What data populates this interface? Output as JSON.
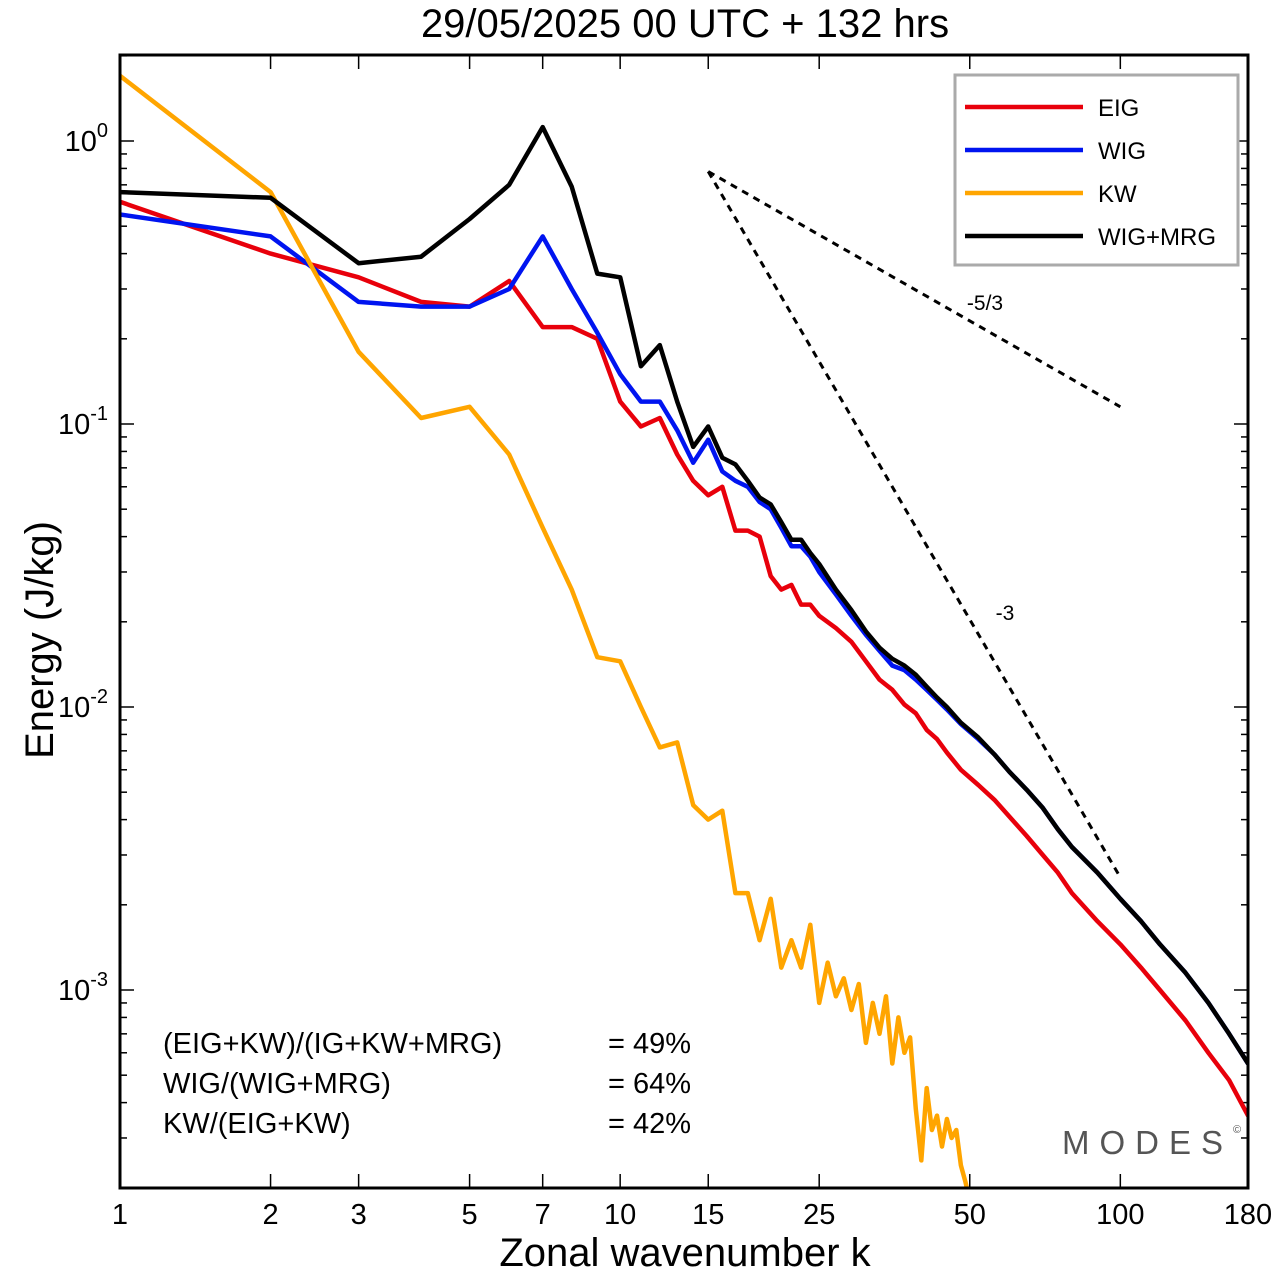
{
  "chart_data": {
    "type": "line",
    "title": "29/05/2025  00 UTC  + 132 hrs",
    "xlabel": "Zonal wavenumber k",
    "ylabel": "Energy (J/kg)",
    "xscale": "log",
    "yscale": "log",
    "xlim": [
      1,
      180
    ],
    "ylim": [
      0.00018,
      2.0
    ],
    "x_ticks": [
      "1",
      "2",
      "3",
      "5",
      "7",
      "10",
      "15",
      "25",
      "50",
      "100",
      "180"
    ],
    "y_ticks": [
      {
        "base": "10",
        "exp": "0"
      },
      {
        "base": "10",
        "exp": "-1"
      },
      {
        "base": "10",
        "exp": "-2"
      },
      {
        "base": "10",
        "exp": "-3"
      }
    ],
    "legend_position": "top-right",
    "series": [
      {
        "name": "EIG",
        "color": "#e8000b",
        "points": [
          [
            1,
            0.61
          ],
          [
            2,
            0.4
          ],
          [
            3,
            0.33
          ],
          [
            4,
            0.27
          ],
          [
            5,
            0.26
          ],
          [
            6,
            0.32
          ],
          [
            7,
            0.22
          ],
          [
            8,
            0.22
          ],
          [
            9,
            0.2
          ],
          [
            10,
            0.12
          ],
          [
            11,
            0.098
          ],
          [
            12,
            0.105
          ],
          [
            13,
            0.078
          ],
          [
            14,
            0.063
          ],
          [
            15,
            0.056
          ],
          [
            16,
            0.06
          ],
          [
            17,
            0.042
          ],
          [
            18,
            0.042
          ],
          [
            19,
            0.04
          ],
          [
            20,
            0.029
          ],
          [
            21,
            0.026
          ],
          [
            22,
            0.027
          ],
          [
            23,
            0.023
          ],
          [
            24,
            0.023
          ],
          [
            25,
            0.021
          ],
          [
            27,
            0.019
          ],
          [
            29,
            0.017
          ],
          [
            31,
            0.0145
          ],
          [
            33,
            0.0125
          ],
          [
            35,
            0.0115
          ],
          [
            37,
            0.0102
          ],
          [
            39,
            0.0095
          ],
          [
            41,
            0.0083
          ],
          [
            43,
            0.0077
          ],
          [
            45,
            0.0069
          ],
          [
            48,
            0.006
          ],
          [
            52,
            0.0053
          ],
          [
            56,
            0.0047
          ],
          [
            60,
            0.0041
          ],
          [
            65,
            0.0035
          ],
          [
            70,
            0.003
          ],
          [
            75,
            0.0026
          ],
          [
            80,
            0.0022
          ],
          [
            90,
            0.00175
          ],
          [
            100,
            0.00145
          ],
          [
            110,
            0.0012
          ],
          [
            120,
            0.001
          ],
          [
            135,
            0.00078
          ],
          [
            150,
            0.0006
          ],
          [
            165,
            0.00048
          ],
          [
            180,
            0.00036
          ]
        ]
      },
      {
        "name": "WIG",
        "color": "#0014f0",
        "points": [
          [
            1,
            0.55
          ],
          [
            2,
            0.46
          ],
          [
            3,
            0.27
          ],
          [
            4,
            0.26
          ],
          [
            5,
            0.26
          ],
          [
            6,
            0.3
          ],
          [
            7,
            0.46
          ],
          [
            8,
            0.3
          ],
          [
            9,
            0.21
          ],
          [
            10,
            0.15
          ],
          [
            11,
            0.12
          ],
          [
            12,
            0.12
          ],
          [
            13,
            0.095
          ],
          [
            14,
            0.073
          ],
          [
            15,
            0.088
          ],
          [
            16,
            0.068
          ],
          [
            17,
            0.063
          ],
          [
            18,
            0.06
          ],
          [
            19,
            0.053
          ],
          [
            20,
            0.05
          ],
          [
            21,
            0.043
          ],
          [
            22,
            0.037
          ],
          [
            23,
            0.037
          ],
          [
            24,
            0.034
          ],
          [
            25,
            0.03
          ],
          [
            27,
            0.025
          ],
          [
            29,
            0.021
          ],
          [
            31,
            0.018
          ],
          [
            33,
            0.0158
          ],
          [
            35,
            0.014
          ],
          [
            37,
            0.0135
          ],
          [
            39,
            0.0125
          ],
          [
            41,
            0.0115
          ],
          [
            43,
            0.0106
          ],
          [
            45,
            0.0098
          ],
          [
            48,
            0.0087
          ],
          [
            52,
            0.0077
          ],
          [
            56,
            0.0068
          ],
          [
            60,
            0.0059
          ],
          [
            65,
            0.0051
          ],
          [
            70,
            0.0044
          ],
          [
            75,
            0.0037
          ],
          [
            80,
            0.0032
          ],
          [
            90,
            0.0026
          ],
          [
            100,
            0.0021
          ],
          [
            110,
            0.00175
          ],
          [
            120,
            0.00145
          ],
          [
            135,
            0.00115
          ],
          [
            150,
            0.0009
          ],
          [
            165,
            0.0007
          ],
          [
            180,
            0.00055
          ]
        ]
      },
      {
        "name": "KW",
        "color": "#ffa500",
        "points": [
          [
            1,
            1.7
          ],
          [
            2,
            0.66
          ],
          [
            3,
            0.18
          ],
          [
            4,
            0.105
          ],
          [
            5,
            0.115
          ],
          [
            6,
            0.078
          ],
          [
            7,
            0.043
          ],
          [
            8,
            0.026
          ],
          [
            9,
            0.015
          ],
          [
            10,
            0.0145
          ],
          [
            11,
            0.01
          ],
          [
            12,
            0.0072
          ],
          [
            13,
            0.0075
          ],
          [
            14,
            0.0045
          ],
          [
            15,
            0.004
          ],
          [
            16,
            0.0043
          ],
          [
            17,
            0.0022
          ],
          [
            18,
            0.0022
          ],
          [
            19,
            0.0015
          ],
          [
            20,
            0.0021
          ],
          [
            21,
            0.0012
          ],
          [
            22,
            0.0015
          ],
          [
            23,
            0.0012
          ],
          [
            24,
            0.0017
          ],
          [
            25,
            0.0009
          ],
          [
            26,
            0.00125
          ],
          [
            27,
            0.00095
          ],
          [
            28,
            0.0011
          ],
          [
            29,
            0.00085
          ],
          [
            30,
            0.00105
          ],
          [
            31,
            0.00065
          ],
          [
            32,
            0.0009
          ],
          [
            33,
            0.0007
          ],
          [
            34,
            0.00095
          ],
          [
            35,
            0.00055
          ],
          [
            36,
            0.0008
          ],
          [
            37,
            0.0006
          ],
          [
            38,
            0.00068
          ],
          [
            39,
            0.00038
          ],
          [
            40,
            0.00025
          ],
          [
            41,
            0.00045
          ],
          [
            42,
            0.00032
          ],
          [
            43,
            0.00036
          ],
          [
            44,
            0.00028
          ],
          [
            45,
            0.00035
          ],
          [
            46,
            0.0003
          ],
          [
            47,
            0.00032
          ],
          [
            48,
            0.00024
          ],
          [
            49,
            0.00021
          ],
          [
            50,
            0.00018
          ]
        ]
      },
      {
        "name": "WIG+MRG",
        "color": "#000000",
        "points": [
          [
            1,
            0.66
          ],
          [
            2,
            0.63
          ],
          [
            3,
            0.37
          ],
          [
            4,
            0.39
          ],
          [
            5,
            0.53
          ],
          [
            6,
            0.7
          ],
          [
            7,
            1.12
          ],
          [
            8,
            0.69
          ],
          [
            9,
            0.34
          ],
          [
            10,
            0.33
          ],
          [
            11,
            0.16
          ],
          [
            12,
            0.19
          ],
          [
            13,
            0.12
          ],
          [
            14,
            0.083
          ],
          [
            15,
            0.098
          ],
          [
            16,
            0.076
          ],
          [
            17,
            0.072
          ],
          [
            18,
            0.063
          ],
          [
            19,
            0.055
          ],
          [
            20,
            0.052
          ],
          [
            21,
            0.045
          ],
          [
            22,
            0.039
          ],
          [
            23,
            0.039
          ],
          [
            24,
            0.035
          ],
          [
            25,
            0.032
          ],
          [
            27,
            0.026
          ],
          [
            29,
            0.022
          ],
          [
            31,
            0.0185
          ],
          [
            33,
            0.0162
          ],
          [
            35,
            0.0148
          ],
          [
            37,
            0.014
          ],
          [
            39,
            0.013
          ],
          [
            41,
            0.0118
          ],
          [
            43,
            0.0108
          ],
          [
            45,
            0.01
          ],
          [
            48,
            0.0088
          ],
          [
            52,
            0.0078
          ],
          [
            56,
            0.0068
          ],
          [
            60,
            0.0059
          ],
          [
            65,
            0.0051
          ],
          [
            70,
            0.0044
          ],
          [
            75,
            0.0037
          ],
          [
            80,
            0.0032
          ],
          [
            90,
            0.0026
          ],
          [
            100,
            0.0021
          ],
          [
            110,
            0.00175
          ],
          [
            120,
            0.00145
          ],
          [
            135,
            0.00115
          ],
          [
            150,
            0.0009
          ],
          [
            165,
            0.0007
          ],
          [
            180,
            0.00055
          ]
        ]
      }
    ],
    "reference_slopes": [
      {
        "label": "-5/3",
        "from": [
          15,
          0.78
        ],
        "to": [
          100,
          0.115
        ]
      },
      {
        "label": "-3",
        "from": [
          15,
          0.78
        ],
        "to": [
          100,
          0.0025
        ]
      }
    ]
  },
  "stats": [
    {
      "label": "(EIG+KW)/(IG+KW+MRG)",
      "value": "= 49%"
    },
    {
      "label": "WIG/(WIG+MRG)",
      "value": "= 64%"
    },
    {
      "label": "KW/(EIG+KW)",
      "value": "= 42%"
    }
  ],
  "watermark": {
    "text": "MODES",
    "mark": "©"
  }
}
